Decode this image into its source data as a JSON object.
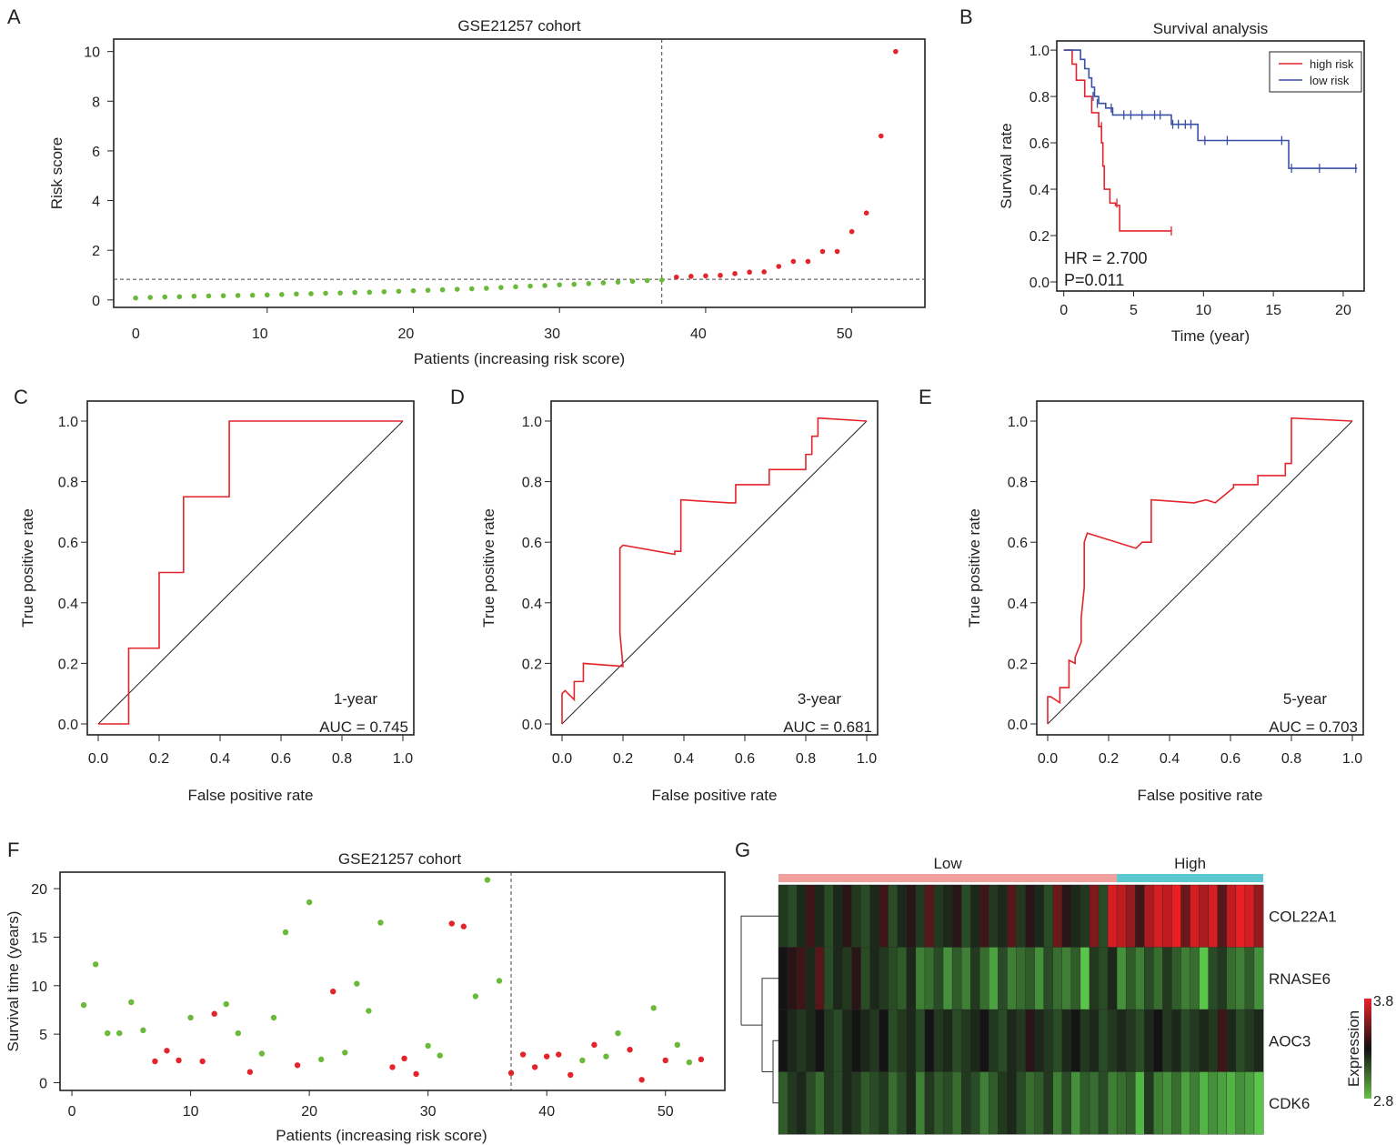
{
  "panels": {
    "A": {
      "letter": "A"
    },
    "B": {
      "letter": "B"
    },
    "C": {
      "letter": "C"
    },
    "D": {
      "letter": "D"
    },
    "E": {
      "letter": "E"
    },
    "F": {
      "letter": "F"
    },
    "G": {
      "letter": "G"
    }
  },
  "chart_data": [
    {
      "panel": "A",
      "type": "scatter",
      "title": "GSE21257 cohort",
      "xlabel": "Patients (increasing risk score)",
      "ylabel": "Risk score",
      "xlim": [
        -0.5,
        55
      ],
      "ylim": [
        -0.3,
        10.5
      ],
      "xticks": [
        10,
        20,
        30,
        40,
        50
      ],
      "xtick_labels_shown": [
        "0",
        "10",
        "20",
        "30",
        "40",
        "50"
      ],
      "yticks": [
        0,
        2,
        4,
        6,
        8,
        10
      ],
      "cutoff_x": 37,
      "cutoff_y": 0.83,
      "colors": {
        "low": "#6ab93a",
        "high": "#e3242b"
      },
      "x": [
        1,
        2,
        3,
        4,
        5,
        6,
        7,
        8,
        9,
        10,
        11,
        12,
        13,
        14,
        15,
        16,
        17,
        18,
        19,
        20,
        21,
        22,
        23,
        24,
        25,
        26,
        27,
        28,
        29,
        30,
        31,
        32,
        33,
        34,
        35,
        36,
        37,
        38,
        39,
        40,
        41,
        42,
        43,
        44,
        45,
        46,
        47,
        48,
        49,
        50,
        51,
        52,
        53
      ],
      "y": [
        0.08,
        0.1,
        0.12,
        0.13,
        0.15,
        0.16,
        0.17,
        0.18,
        0.19,
        0.2,
        0.22,
        0.24,
        0.25,
        0.27,
        0.28,
        0.3,
        0.31,
        0.33,
        0.35,
        0.37,
        0.39,
        0.41,
        0.43,
        0.45,
        0.47,
        0.5,
        0.53,
        0.56,
        0.58,
        0.61,
        0.63,
        0.66,
        0.69,
        0.72,
        0.75,
        0.78,
        0.8,
        0.92,
        0.95,
        0.97,
        0.99,
        1.06,
        1.12,
        1.13,
        1.35,
        1.55,
        1.55,
        1.95,
        1.95,
        2.75,
        3.5,
        6.6,
        10.0
      ],
      "group": [
        "low",
        "low",
        "low",
        "low",
        "low",
        "low",
        "low",
        "low",
        "low",
        "low",
        "low",
        "low",
        "low",
        "low",
        "low",
        "low",
        "low",
        "low",
        "low",
        "low",
        "low",
        "low",
        "low",
        "low",
        "low",
        "low",
        "low",
        "low",
        "low",
        "low",
        "low",
        "low",
        "low",
        "low",
        "low",
        "low",
        "low",
        "high",
        "high",
        "high",
        "high",
        "high",
        "high",
        "high",
        "high",
        "high",
        "high",
        "high",
        "high",
        "high",
        "high",
        "high",
        "high"
      ]
    },
    {
      "panel": "B",
      "type": "line",
      "title": "Survival analysis",
      "xlabel": "Time (year)",
      "ylabel": "Survival rate",
      "xlim": [
        -0.5,
        21.5
      ],
      "ylim": [
        0,
        1.02
      ],
      "xticks": [
        0,
        5,
        10,
        15,
        20
      ],
      "yticks": [
        0.0,
        0.2,
        0.4,
        0.6,
        0.8,
        1.0
      ],
      "ytick_labels": [
        "0.0",
        "0.2",
        "0.4",
        "0.6",
        "0.8",
        "1.0"
      ],
      "legend": [
        "high risk",
        "low risk"
      ],
      "legend_position": "top-right",
      "hr_text": "HR = 2.700",
      "p_text": "P=0.011",
      "series": [
        {
          "name": "high risk",
          "color": "#e3242b",
          "steps": [
            [
              0,
              1.0
            ],
            [
              0.6,
              0.94
            ],
            [
              0.9,
              0.87
            ],
            [
              1.4,
              0.87
            ],
            [
              1.5,
              0.8
            ],
            [
              2.0,
              0.73
            ],
            [
              2.5,
              0.67
            ],
            [
              2.7,
              0.6
            ],
            [
              2.8,
              0.5
            ],
            [
              2.9,
              0.4
            ],
            [
              3.3,
              0.34
            ],
            [
              3.7,
              0.33
            ],
            [
              4.0,
              0.22
            ],
            [
              7.7,
              0.22
            ]
          ],
          "censor": [
            [
              2.7,
              0.67
            ],
            [
              3.8,
              0.34
            ],
            [
              7.7,
              0.22
            ]
          ]
        },
        {
          "name": "low risk",
          "color": "#3a4fa8",
          "steps": [
            [
              0,
              1.0
            ],
            [
              1.2,
              0.96
            ],
            [
              1.5,
              0.92
            ],
            [
              1.8,
              0.88
            ],
            [
              2.0,
              0.84
            ],
            [
              2.2,
              0.8
            ],
            [
              2.5,
              0.77
            ],
            [
              3.0,
              0.75
            ],
            [
              3.5,
              0.72
            ],
            [
              7.5,
              0.72
            ],
            [
              7.7,
              0.68
            ],
            [
              9.5,
              0.68
            ],
            [
              9.6,
              0.61
            ],
            [
              16.0,
              0.61
            ],
            [
              16.1,
              0.49
            ],
            [
              21.0,
              0.49
            ]
          ],
          "censor": [
            [
              2.1,
              0.8
            ],
            [
              2.4,
              0.77
            ],
            [
              3.4,
              0.75
            ],
            [
              4.3,
              0.72
            ],
            [
              4.8,
              0.72
            ],
            [
              5.6,
              0.72
            ],
            [
              6.5,
              0.72
            ],
            [
              6.9,
              0.72
            ],
            [
              7.8,
              0.68
            ],
            [
              8.2,
              0.68
            ],
            [
              8.7,
              0.68
            ],
            [
              9.1,
              0.68
            ],
            [
              10.1,
              0.61
            ],
            [
              11.7,
              0.61
            ],
            [
              15.6,
              0.61
            ],
            [
              16.3,
              0.49
            ],
            [
              18.3,
              0.49
            ],
            [
              20.9,
              0.49
            ]
          ]
        }
      ]
    },
    {
      "panel": "C",
      "type": "line",
      "xlabel": "False positive rate",
      "ylabel": "True positive rate",
      "xticks": [
        0.0,
        0.2,
        0.4,
        0.6,
        0.8,
        1.0
      ],
      "tick_labels": [
        "0.0",
        "0.2",
        "0.4",
        "0.6",
        "0.8",
        "1.0"
      ],
      "label1": "1-year",
      "label2": "AUC = 0.745",
      "color": "#e3242b",
      "x": [
        0,
        0.1,
        0.1,
        0.2,
        0.2,
        0.28,
        0.28,
        0.43,
        0.43,
        1.0
      ],
      "y": [
        0,
        0,
        0.25,
        0.25,
        0.5,
        0.5,
        0.75,
        0.75,
        1.0,
        1.0
      ]
    },
    {
      "panel": "D",
      "type": "line",
      "xlabel": "False positive rate",
      "ylabel": "True positive rate",
      "xticks": [
        0.0,
        0.2,
        0.4,
        0.6,
        0.8,
        1.0
      ],
      "tick_labels": [
        "0.0",
        "0.2",
        "0.4",
        "0.6",
        "0.8",
        "1.0"
      ],
      "label1": "3-year",
      "label2": "AUC = 0.681",
      "color": "#e3242b",
      "x": [
        0,
        0,
        0.01,
        0.04,
        0.04,
        0.07,
        0.07,
        0.2,
        0.19,
        0.19,
        0.2,
        0.37,
        0.37,
        0.39,
        0.39,
        0.55,
        0.57,
        0.57,
        0.68,
        0.68,
        0.8,
        0.8,
        0.82,
        0.82,
        0.84,
        0.84,
        1.0
      ],
      "y": [
        0,
        0.1,
        0.11,
        0.08,
        0.14,
        0.14,
        0.2,
        0.19,
        0.3,
        0.58,
        0.59,
        0.56,
        0.57,
        0.57,
        0.74,
        0.73,
        0.73,
        0.79,
        0.79,
        0.84,
        0.84,
        0.89,
        0.89,
        0.95,
        0.95,
        1.01,
        1.0
      ]
    },
    {
      "panel": "E",
      "type": "line",
      "xlabel": "False positive rate",
      "ylabel": "True positive rate",
      "xticks": [
        0.0,
        0.2,
        0.4,
        0.6,
        0.8,
        1.0
      ],
      "tick_labels": [
        "0.0",
        "0.2",
        "0.4",
        "0.6",
        "0.8",
        "1.0"
      ],
      "label1": "5-year",
      "label2": "AUC = 0.703",
      "color": "#e3242b",
      "x": [
        0,
        0,
        0.01,
        0.04,
        0.04,
        0.07,
        0.07,
        0.09,
        0.09,
        0.11,
        0.11,
        0.12,
        0.12,
        0.13,
        0.29,
        0.31,
        0.34,
        0.34,
        0.48,
        0.52,
        0.55,
        0.61,
        0.61,
        0.69,
        0.69,
        0.78,
        0.78,
        0.8,
        0.8,
        1.0
      ],
      "y": [
        0,
        0.09,
        0.09,
        0.07,
        0.12,
        0.12,
        0.21,
        0.2,
        0.22,
        0.27,
        0.35,
        0.45,
        0.6,
        0.63,
        0.58,
        0.6,
        0.6,
        0.74,
        0.73,
        0.74,
        0.73,
        0.78,
        0.79,
        0.79,
        0.82,
        0.82,
        0.86,
        0.86,
        1.01,
        1.0
      ]
    },
    {
      "panel": "F",
      "type": "scatter",
      "title": "GSE21257 cohort",
      "xlabel": "Patients (increasing risk score)",
      "ylabel": "Survival time (years)",
      "xlim": [
        -1,
        55
      ],
      "ylim": [
        -0.8,
        21.7
      ],
      "xticks": [
        0,
        10,
        20,
        30,
        40,
        50
      ],
      "yticks": [
        0,
        5,
        10,
        15,
        20
      ],
      "cutoff_x": 37,
      "colors": {
        "alive": "#6ab93a",
        "dead": "#e3242b"
      },
      "x": [
        1,
        2,
        3,
        4,
        5,
        6,
        7,
        8,
        9,
        10,
        11,
        12,
        13,
        14,
        15,
        16,
        17,
        18,
        19,
        20,
        21,
        22,
        23,
        24,
        25,
        26,
        27,
        28,
        29,
        30,
        31,
        32,
        33,
        34,
        35,
        36,
        37,
        38,
        39,
        40,
        41,
        42,
        43,
        44,
        45,
        46,
        47,
        48,
        49,
        50,
        51,
        52,
        53
      ],
      "y": [
        8,
        12.2,
        5.1,
        5.1,
        8.3,
        5.4,
        2.2,
        3.3,
        2.3,
        6.7,
        2.2,
        7.1,
        8.1,
        5.1,
        1.1,
        3,
        6.7,
        15.5,
        1.8,
        18.6,
        2.4,
        9.4,
        3.1,
        10.2,
        7.4,
        16.5,
        1.6,
        2.5,
        0.9,
        3.8,
        2.8,
        16.4,
        16.1,
        8.9,
        20.9,
        10.5,
        1,
        2.9,
        1.6,
        2.7,
        2.9,
        0.8,
        2.3,
        3.9,
        2.7,
        5.1,
        3.4,
        0.3,
        7.7,
        2.3,
        3.9,
        2.1,
        2.4
      ],
      "status": [
        "alive",
        "alive",
        "alive",
        "alive",
        "alive",
        "alive",
        "dead",
        "dead",
        "dead",
        "alive",
        "dead",
        "dead",
        "alive",
        "alive",
        "dead",
        "alive",
        "alive",
        "alive",
        "dead",
        "alive",
        "alive",
        "dead",
        "alive",
        "alive",
        "alive",
        "alive",
        "dead",
        "dead",
        "dead",
        "alive",
        "alive",
        "dead",
        "dead",
        "alive",
        "alive",
        "alive",
        "dead",
        "dead",
        "dead",
        "dead",
        "dead",
        "dead",
        "alive",
        "dead",
        "alive",
        "alive",
        "dead",
        "dead",
        "alive",
        "dead",
        "alive",
        "alive",
        "dead"
      ]
    },
    {
      "panel": "G",
      "type": "heatmap",
      "group_labels": [
        "Low",
        "High"
      ],
      "group_counts": [
        37,
        16
      ],
      "group_colors": [
        "#f0a09c",
        "#5bc8cf"
      ],
      "genes": [
        "COL22A1",
        "RNASE6",
        "AOC3",
        "CDK6"
      ],
      "legend_title": "Expression",
      "legend_range": [
        "3.8",
        "2.8"
      ],
      "values": [
        [
          -0.2,
          -0.3,
          -0.1,
          0.2,
          -0.1,
          -0.3,
          -0.1,
          0.1,
          -0.2,
          -0.3,
          -0.1,
          0.2,
          -0.3,
          -0.1,
          0.1,
          -0.2,
          0.3,
          -0.2,
          -0.1,
          0.1,
          -0.3,
          -0.1,
          0.2,
          -0.2,
          -0.1,
          0.3,
          -0.2,
          0.1,
          -0.1,
          -0.3,
          0.4,
          0.1,
          -0.1,
          -0.2,
          0.5,
          -0.3,
          0.9,
          0.8,
          0.6,
          0.2,
          0.7,
          0.9,
          0.8,
          1.0,
          0.4,
          0.9,
          0.7,
          0.9,
          0.3,
          0.8,
          1.0,
          0.9,
          0.6
        ],
        [
          0.0,
          0.1,
          0.2,
          -0.1,
          0.3,
          -0.3,
          -0.1,
          -0.2,
          0.1,
          -0.3,
          -0.1,
          -0.2,
          -0.3,
          -0.4,
          -0.1,
          -0.6,
          -0.5,
          -0.3,
          -0.7,
          -0.4,
          -0.6,
          -0.2,
          -0.5,
          -0.8,
          -0.3,
          -0.6,
          -0.5,
          -0.4,
          -0.7,
          -0.3,
          -0.5,
          -0.6,
          -0.4,
          -1.0,
          -0.2,
          -0.3,
          -0.1,
          -0.7,
          -0.4,
          -0.6,
          -0.3,
          -0.5,
          -0.2,
          -0.4,
          -0.6,
          -0.5,
          -1.0,
          -0.3,
          -0.2,
          -0.5,
          -0.6,
          -0.4,
          -0.7
        ],
        [
          0.0,
          -0.1,
          -0.2,
          -0.1,
          0.0,
          -0.2,
          -0.3,
          -0.1,
          0.0,
          -0.1,
          -0.2,
          0.0,
          -0.3,
          -0.2,
          -0.1,
          -0.3,
          0.0,
          -0.2,
          -0.1,
          -0.3,
          -0.2,
          -0.1,
          0.0,
          -0.2,
          -0.3,
          -0.1,
          -0.2,
          0.1,
          -0.1,
          -0.2,
          -0.3,
          -0.1,
          0.0,
          -0.2,
          -0.1,
          -0.3,
          -0.2,
          -0.1,
          -0.2,
          -0.3,
          -0.1,
          0.0,
          -0.2,
          -0.1,
          -0.3,
          -0.2,
          -0.1,
          -0.2,
          0.2,
          -0.1,
          -0.3,
          -0.2,
          -0.1
        ],
        [
          -0.4,
          -0.2,
          -0.1,
          -0.3,
          -0.5,
          -0.2,
          -0.3,
          -0.1,
          -0.2,
          -0.4,
          -0.3,
          -0.2,
          -0.5,
          -0.3,
          -0.1,
          -0.6,
          -0.2,
          -0.4,
          -0.3,
          -0.5,
          -0.2,
          -0.3,
          -0.6,
          -0.4,
          -0.2,
          -0.1,
          -0.3,
          -0.5,
          -0.4,
          -0.2,
          -0.6,
          -0.3,
          -0.7,
          -0.4,
          -0.5,
          -0.3,
          -0.6,
          -0.5,
          -0.4,
          -0.9,
          -0.2,
          -0.6,
          -0.7,
          -0.5,
          -0.8,
          -0.6,
          -0.9,
          -0.7,
          -0.8,
          -0.9,
          -0.7,
          -0.8,
          -1.0
        ]
      ]
    }
  ]
}
